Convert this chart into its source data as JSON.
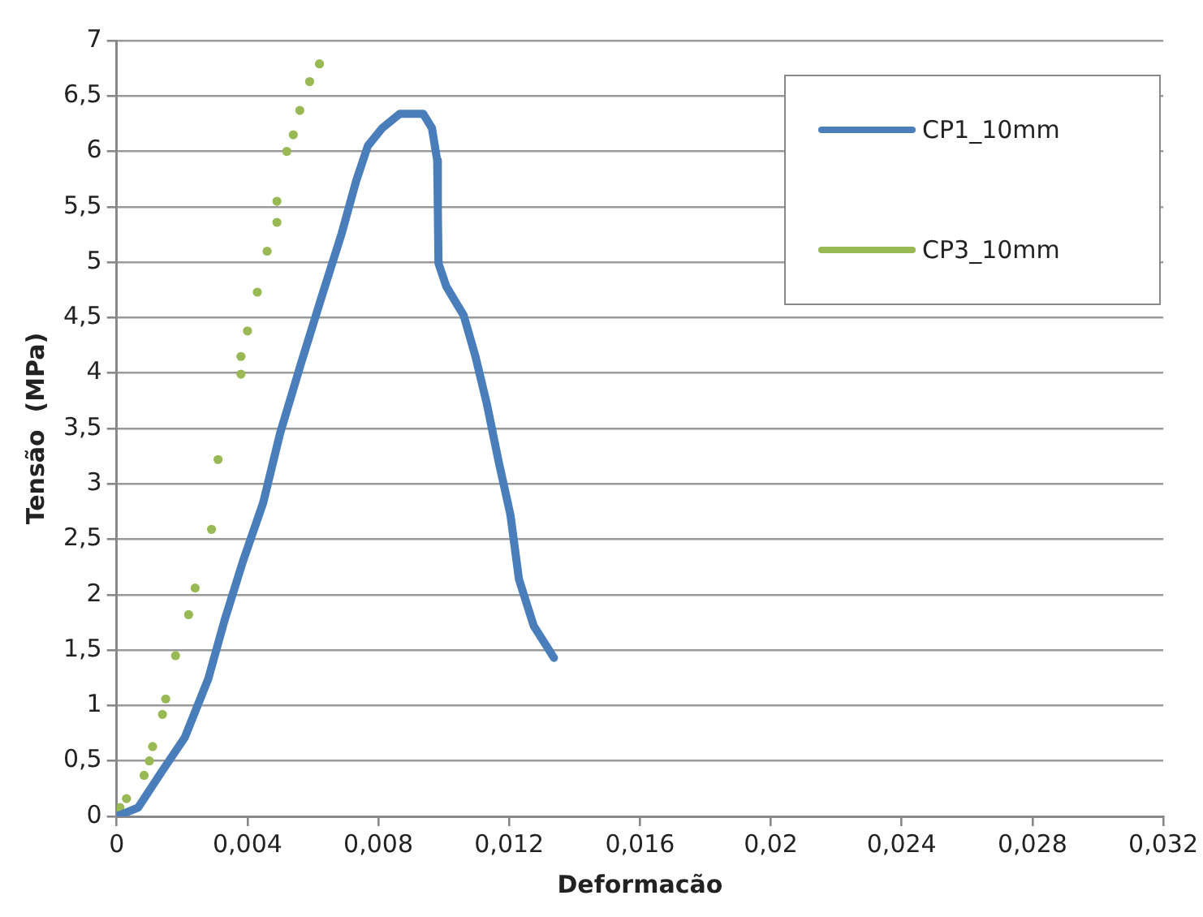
{
  "chart_data": {
    "type": "line",
    "xlabel": "Deformacão",
    "ylabel": "Tensão  (MPa)",
    "xlim": [
      0,
      0.032
    ],
    "xticks": [
      0,
      {
        "value": 0.004,
        "label": "0,004"
      },
      {
        "value": 0.008,
        "label": "0,008"
      },
      {
        "value": 0.012,
        "label": "0,012"
      },
      {
        "value": 0.016,
        "label": "0,016"
      },
      {
        "value": 0.02,
        "label": "0,02"
      },
      {
        "value": 0.024,
        "label": "0,024"
      },
      {
        "value": 0.028,
        "label": "0,028"
      },
      {
        "value": 0.032,
        "label": "0,032"
      }
    ],
    "ylim": [
      0,
      7
    ],
    "yticks": [
      0,
      {
        "value": 0.5,
        "label": "0,5"
      },
      1,
      {
        "value": 1.5,
        "label": "1,5"
      },
      2,
      {
        "value": 2.5,
        "label": "2,5"
      },
      3,
      {
        "value": 3.5,
        "label": "3,5"
      },
      4,
      {
        "value": 4.5,
        "label": "4,5"
      },
      5,
      {
        "value": 5.5,
        "label": "5,5"
      },
      6,
      {
        "value": 6.5,
        "label": "6,5"
      },
      7
    ],
    "grid": "y",
    "legend": "top right",
    "series": [
      {
        "name": "CP1_10mm",
        "color": "#4a7ebb",
        "marker": "none",
        "line_style": "solid",
        "x": [
          0,
          0.00066,
          0.00137,
          0.00208,
          0.0028,
          0.0033,
          0.00386,
          0.00448,
          0.005,
          0.00564,
          0.00626,
          0.00688,
          0.00732,
          0.00768,
          0.00812,
          0.00866,
          0.00937,
          0.00964,
          0.0098,
          0.00982,
          0.00984,
          0.01008,
          0.01061,
          0.01097,
          0.01132,
          0.01168,
          0.01204,
          0.0123,
          0.01275,
          0.01337
        ],
        "values": [
          0,
          0.08,
          0.4,
          0.71,
          1.24,
          1.77,
          2.3,
          2.83,
          3.46,
          4.09,
          4.68,
          5.26,
          5.73,
          6.05,
          6.21,
          6.34,
          6.34,
          6.21,
          5.92,
          5.47,
          4.99,
          4.78,
          4.52,
          4.15,
          3.72,
          3.2,
          2.72,
          2.14,
          1.72,
          1.43
        ]
      },
      {
        "name": "CP3_10mm",
        "type": "scatter",
        "color": "#98b954",
        "marker": "circle",
        "x": [
          0.0001,
          0.0003,
          0.00084,
          0.001,
          0.0011,
          0.0014,
          0.0015,
          0.0018,
          0.0022,
          0.0024,
          0.0029,
          0.0031,
          0.0038,
          0.0038,
          0.004,
          0.0043,
          0.0046,
          0.0049,
          0.0049,
          0.0052,
          0.0054,
          0.0056,
          0.0059,
          0.0062
        ],
        "values": [
          0.08,
          0.16,
          0.37,
          0.5,
          0.63,
          0.92,
          1.06,
          1.45,
          1.82,
          2.06,
          2.59,
          3.22,
          3.99,
          4.15,
          4.38,
          4.73,
          5.1,
          5.36,
          5.55,
          6,
          6.15,
          6.37,
          6.63,
          6.79
        ]
      }
    ]
  }
}
